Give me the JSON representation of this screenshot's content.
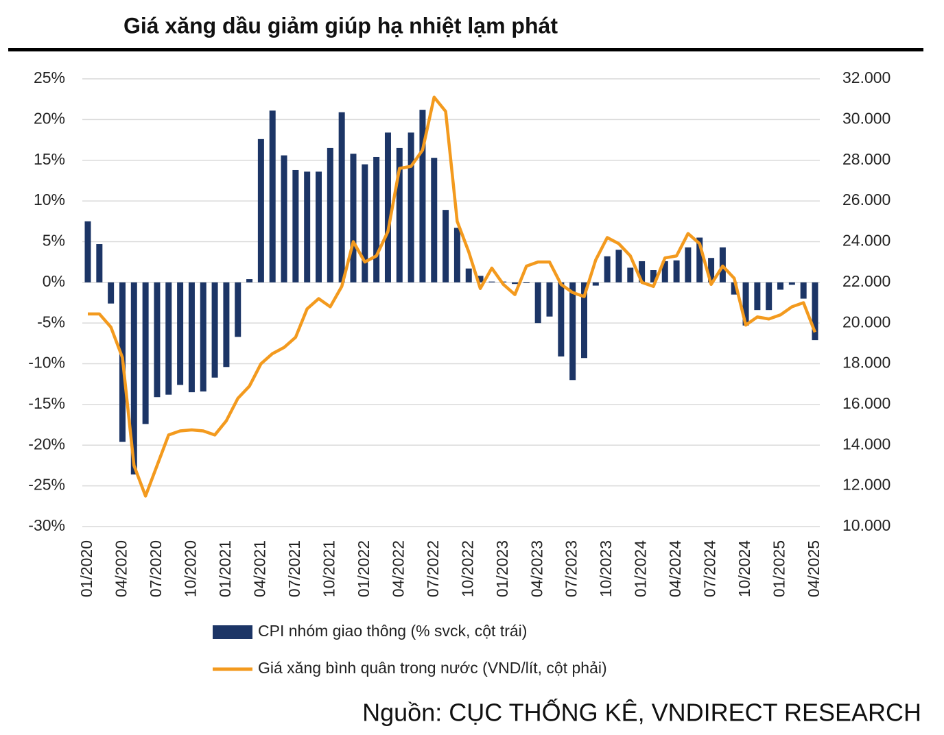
{
  "chart_data": {
    "type": "bar-line",
    "title": "Giá xăng dầu giảm giúp hạ nhiệt lạm phát",
    "source": "Nguồn:  CỤC THỐNG KÊ, VNDIRECT RESEARCH",
    "categories": [
      "01/2020",
      null,
      null,
      "04/2020",
      null,
      null,
      "07/2020",
      null,
      null,
      "10/2020",
      null,
      null,
      "01/2021",
      null,
      null,
      "04/2021",
      null,
      null,
      "07/2021",
      null,
      null,
      "10/2021",
      null,
      null,
      "01/2022",
      null,
      null,
      "04/2022",
      null,
      null,
      "07/2022",
      null,
      null,
      "10/2022",
      null,
      null,
      "01/2023",
      null,
      null,
      "04/2023",
      null,
      null,
      "07/2023",
      null,
      null,
      "10/2023",
      null,
      null,
      "01/2024",
      null,
      null,
      "04/2024",
      null,
      null,
      "07/2024",
      null,
      null,
      "10/2024",
      null,
      null,
      "01/2025",
      null,
      null,
      "04/2025"
    ],
    "series": [
      {
        "name": "CPI nhóm giao thông (% svck, cột trái)",
        "type": "bar",
        "color": "#1c3566",
        "values": [
          7.5,
          4.7,
          -2.6,
          -19.6,
          -23.6,
          -17.4,
          -14.1,
          -13.8,
          -12.6,
          -13.5,
          -13.4,
          -11.7,
          -10.4,
          -6.7,
          0.4,
          17.6,
          21.1,
          15.6,
          13.8,
          13.6,
          13.6,
          16.5,
          20.9,
          15.8,
          14.5,
          15.4,
          18.4,
          16.5,
          18.4,
          21.2,
          15.3,
          8.9,
          6.7,
          1.7,
          0.8,
          0.1,
          0.1,
          -0.2,
          -0.1,
          -5.0,
          -4.2,
          -9.1,
          -12.0,
          -9.3,
          -0.4,
          3.2,
          4.0,
          1.8,
          2.6,
          1.5,
          2.6,
          2.7,
          4.3,
          5.5,
          3.0,
          4.3,
          -1.5,
          -5.3,
          -3.4,
          -3.4,
          -0.9,
          -0.3,
          -2.0,
          -7.1
        ]
      },
      {
        "name": "Giá xăng bình quân trong nước (VND/lít, cột phải)",
        "type": "line",
        "axis": "y2",
        "color": "#f39a1e",
        "values": [
          20450,
          20450,
          19800,
          18300,
          13000,
          11500,
          13000,
          14500,
          14700,
          14750,
          14700,
          14500,
          15200,
          16300,
          16900,
          18000,
          18500,
          18800,
          19300,
          20700,
          21200,
          20800,
          21800,
          24000,
          23000,
          23300,
          24500,
          27600,
          27700,
          28500,
          31100,
          30400,
          25000,
          23500,
          21700,
          22700,
          21900,
          21400,
          22800,
          23000,
          23000,
          21900,
          21500,
          21300,
          23100,
          24200,
          23900,
          23300,
          22000,
          21800,
          23200,
          23300,
          24400,
          23900,
          21900,
          22800,
          22200,
          19900,
          20300,
          20200,
          20400,
          20800,
          21000,
          19550
        ]
      }
    ],
    "ylim": [
      -30,
      25
    ],
    "yticks": [
      {
        "value": 25,
        "label": "25%"
      },
      {
        "value": 20,
        "label": "20%"
      },
      {
        "value": 15,
        "label": "15%"
      },
      {
        "value": 10,
        "label": "10%"
      },
      {
        "value": 5,
        "label": "5%"
      },
      {
        "value": 0,
        "label": "0%"
      },
      {
        "value": -5,
        "label": "-5%"
      },
      {
        "value": -10,
        "label": "-10%"
      },
      {
        "value": -15,
        "label": "-15%"
      },
      {
        "value": -20,
        "label": "-20%"
      },
      {
        "value": -25,
        "label": "-25%"
      },
      {
        "value": -30,
        "label": "-30%"
      }
    ],
    "y2lim": [
      10000,
      32000
    ],
    "y2ticks": [
      {
        "value": 32000,
        "label": "32.000"
      },
      {
        "value": 30000,
        "label": "30.000"
      },
      {
        "value": 28000,
        "label": "28.000"
      },
      {
        "value": 26000,
        "label": "26.000"
      },
      {
        "value": 24000,
        "label": "24.000"
      },
      {
        "value": 22000,
        "label": "22.000"
      },
      {
        "value": 20000,
        "label": "20.000"
      },
      {
        "value": 18000,
        "label": "18.000"
      },
      {
        "value": 16000,
        "label": "16.000"
      },
      {
        "value": 14000,
        "label": "14.000"
      },
      {
        "value": 12000,
        "label": "12.000"
      },
      {
        "value": 10000,
        "label": "10.000"
      }
    ],
    "grid": true
  }
}
